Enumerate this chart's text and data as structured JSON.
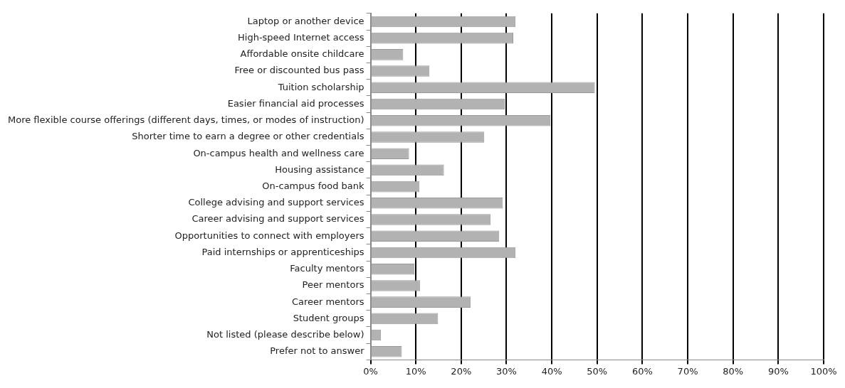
{
  "chart_data": {
    "type": "bar",
    "orientation": "horizontal",
    "categories": [
      "Laptop or another device",
      "High-speed Internet access",
      "Affordable onsite childcare",
      "Free or discounted bus pass",
      "Tuition scholarship",
      "Easier financial aid processes",
      "More flexible course offerings (different days, times, or modes of instruction)",
      "Shorter time to earn a degree or other credentials",
      "On-campus health and wellness care",
      "Housing assistance",
      "On-campus food bank",
      "College advising and support services",
      "Career advising and support services",
      "Opportunities to connect with employers",
      "Paid internships or apprenticeships",
      "Faculty mentors",
      "Peer mentors",
      "Career mentors",
      "Student groups",
      "Not listed (please describe below)",
      "Prefer not to answer"
    ],
    "values": [
      32.0,
      31.5,
      7.2,
      13.0,
      49.5,
      29.6,
      39.7,
      25.1,
      8.5,
      16.2,
      10.8,
      29.2,
      26.5,
      28.4,
      32.0,
      9.7,
      10.9,
      22.1,
      14.9,
      2.3,
      6.9
    ],
    "color": "#b2b2b2",
    "xlim": [
      0,
      100
    ],
    "xticks": [
      {
        "value": 0,
        "label": "0%"
      },
      {
        "value": 10,
        "label": "10%"
      },
      {
        "value": 20,
        "label": "20%"
      },
      {
        "value": 30,
        "label": "30%"
      },
      {
        "value": 40,
        "label": "40%"
      },
      {
        "value": 50,
        "label": "50%"
      },
      {
        "value": 60,
        "label": "60%"
      },
      {
        "value": 70,
        "label": "70%"
      },
      {
        "value": 80,
        "label": "80%"
      },
      {
        "value": 90,
        "label": "90%"
      },
      {
        "value": 100,
        "label": "100%"
      }
    ],
    "grid": "x",
    "legend": false
  }
}
